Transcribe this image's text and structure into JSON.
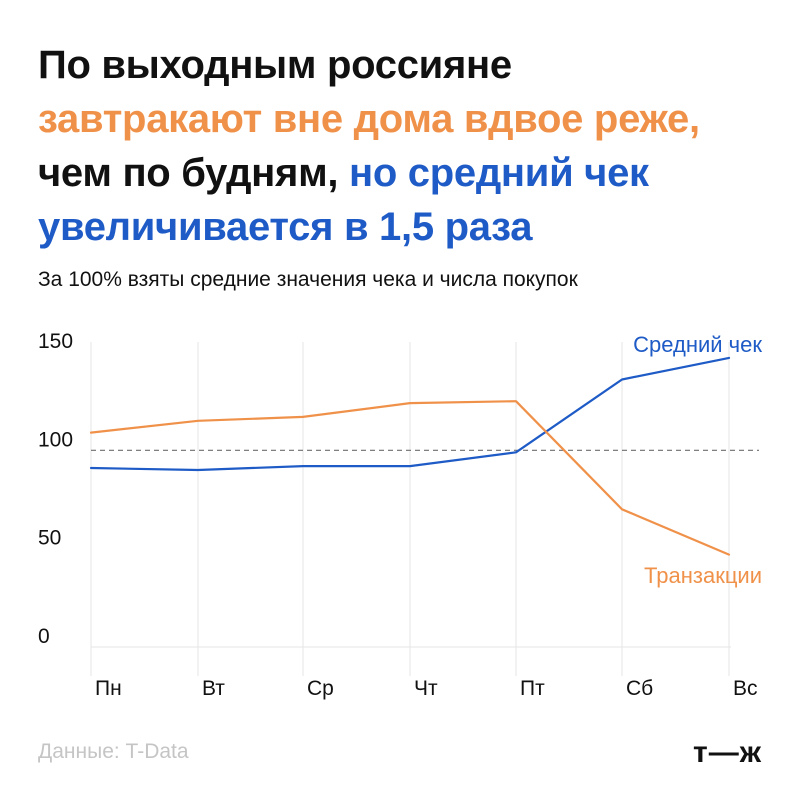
{
  "headline": {
    "line1": "По выходным россияне",
    "line2": "завтракают вне дома вдвое реже,",
    "line3_a": "чем по будням, ",
    "line3_b": "но средний чек",
    "line4": "увеличивается в 1,5 раза"
  },
  "subtitle": "За 100% взяты средние значения чека и числа покупок",
  "footer": {
    "source": "Данные: T-Data",
    "logo": "т—ж"
  },
  "colors": {
    "orange": "#F0914A",
    "blue": "#1E5BC6",
    "text": "#111111",
    "grid": "#e6e6e6",
    "muted": "#c5c5c5"
  },
  "chart_data": {
    "type": "line",
    "categories": [
      "Пн",
      "Вт",
      "Ср",
      "Чт",
      "Пт",
      "Сб",
      "Вс"
    ],
    "yticks": [
      0,
      50,
      100,
      150
    ],
    "ylim": [
      0,
      150
    ],
    "reference_line": 100,
    "series": [
      {
        "name": "Средний чек",
        "color": "#1E5BC6",
        "values": [
          91,
          90,
          92,
          92,
          99,
          136,
          147
        ]
      },
      {
        "name": "Транзакции",
        "color": "#F0914A",
        "values": [
          109,
          115,
          117,
          124,
          125,
          70,
          47
        ]
      }
    ]
  }
}
